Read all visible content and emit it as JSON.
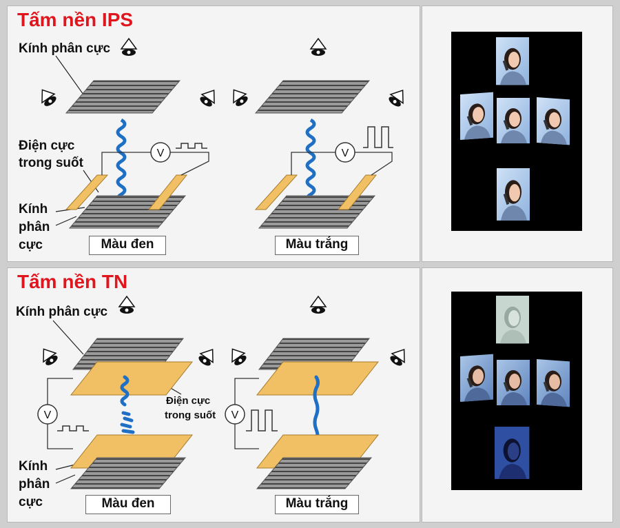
{
  "ips": {
    "title": "Tấm nền IPS",
    "top_polarizer_label": "Kính phân cực",
    "electrode_label_line1": "Điện cực",
    "electrode_label_line2": "trong suốt",
    "bottom_polarizer_line1": "Kính",
    "bottom_polarizer_line2": "phân",
    "bottom_polarizer_line3": "cực",
    "state_black": "Màu đen",
    "state_white": "Màu trắng",
    "voltmeter_symbol": "V"
  },
  "tn": {
    "title": "Tấm nền TN",
    "top_polarizer_label": "Kính phân cực",
    "electrode_label_line1": "Điện cực",
    "electrode_label_line2": "trong suốt",
    "bottom_polarizer_line1": "Kính",
    "bottom_polarizer_line2": "phân",
    "bottom_polarizer_line3": "cực",
    "state_black": "Màu đen",
    "state_white": "Màu trắng",
    "voltmeter_symbol": "V"
  },
  "colors": {
    "title_red": "#e0161e",
    "liquid_crystal_blue": "#1f6fc4",
    "electrode_yellow": "#f2c064",
    "polarizer_grey": "#8c8c8c"
  },
  "icons": [
    "eye-icon",
    "voltmeter-icon",
    "square-wave-icon",
    "woman-photo"
  ]
}
